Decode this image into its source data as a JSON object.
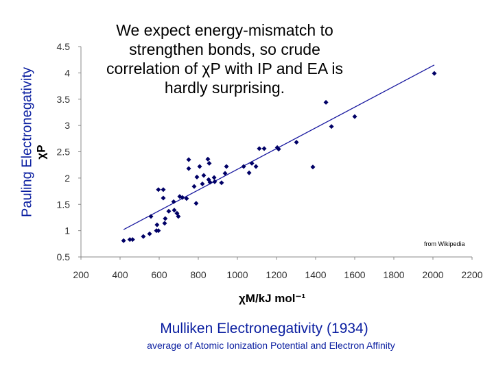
{
  "slide": {
    "title": "We expect energy-mismatch to strengthen bonds, so crude correlation of χP with IP and EA is hardly surprising.",
    "outer_ylabel": "Pauling Electronegativity",
    "subtitle": "Mulliken Electronegativity (1934)",
    "caption": "average of Atomic Ionization Potential and Electron Affinity",
    "source": "from Wikipedia"
  },
  "chart_data": {
    "type": "scatter",
    "xlabel": "χM/kJ mol⁻¹",
    "ylabel": "χP",
    "xlim": [
      200,
      2200
    ],
    "ylim": [
      0.5,
      4.5
    ],
    "xticks": [
      200,
      400,
      600,
      800,
      1000,
      1200,
      1400,
      1600,
      1800,
      2000,
      2200
    ],
    "yticks": [
      0.5,
      1,
      1.5,
      2,
      2.5,
      3,
      3.5,
      4,
      4.5
    ],
    "grid": false,
    "marker_color": "#000066",
    "line_color": "#1a1aa0",
    "points": [
      [
        418,
        0.81
      ],
      [
        450,
        0.83
      ],
      [
        464,
        0.83
      ],
      [
        519,
        0.89
      ],
      [
        551,
        0.94
      ],
      [
        586,
        1.0
      ],
      [
        596,
        1.0
      ],
      [
        589,
        1.11
      ],
      [
        558,
        1.27
      ],
      [
        628,
        1.14
      ],
      [
        631,
        1.23
      ],
      [
        649,
        1.37
      ],
      [
        677,
        1.39
      ],
      [
        691,
        1.33
      ],
      [
        698,
        1.27
      ],
      [
        674,
        1.55
      ],
      [
        596,
        1.78
      ],
      [
        621,
        1.78
      ],
      [
        621,
        1.62
      ],
      [
        705,
        1.65
      ],
      [
        719,
        1.63
      ],
      [
        740,
        1.61
      ],
      [
        789,
        1.52
      ],
      [
        779,
        1.84
      ],
      [
        793,
        2.02
      ],
      [
        751,
        2.18
      ],
      [
        751,
        2.35
      ],
      [
        807,
        2.22
      ],
      [
        828,
        2.05
      ],
      [
        821,
        1.89
      ],
      [
        856,
        2.28
      ],
      [
        849,
        2.36
      ],
      [
        853,
        1.97
      ],
      [
        860,
        1.92
      ],
      [
        884,
        1.93
      ],
      [
        881,
        2.01
      ],
      [
        919,
        1.91
      ],
      [
        937,
        2.09
      ],
      [
        944,
        2.22
      ],
      [
        1032,
        2.22
      ],
      [
        1060,
        2.1
      ],
      [
        1074,
        2.28
      ],
      [
        1095,
        2.22
      ],
      [
        1112,
        2.56
      ],
      [
        1137,
        2.56
      ],
      [
        1204,
        2.58
      ],
      [
        1211,
        2.55
      ],
      [
        1302,
        2.68
      ],
      [
        1386,
        2.21
      ],
      [
        1453,
        3.44
      ],
      [
        1481,
        2.98
      ],
      [
        1600,
        3.17
      ],
      [
        2007,
        3.99
      ]
    ],
    "trendline": [
      [
        418,
        1.02
      ],
      [
        2007,
        4.15
      ]
    ]
  }
}
